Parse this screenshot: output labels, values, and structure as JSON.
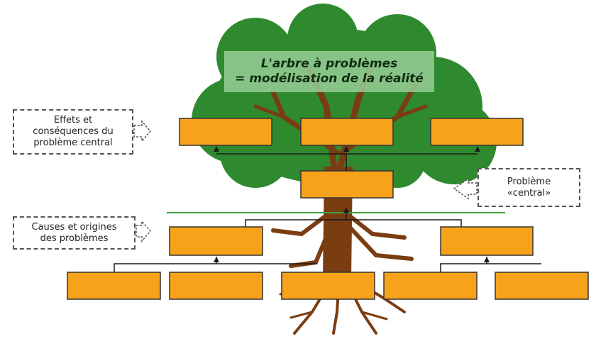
{
  "title": {
    "line1": "L'arbre à problèmes",
    "line2": "= modélisation de la réalité"
  },
  "labels": {
    "effects": [
      "Effets et",
      "conséquences du",
      "problème central"
    ],
    "central": [
      "Problème",
      "«central»"
    ],
    "causes": [
      "Causes et origines",
      "des problèmes"
    ]
  },
  "colors": {
    "canopy": "#2f8a2f",
    "trunk": "#7a3d12",
    "box_fill": "#f7a21b",
    "box_border": "#333333",
    "ground_line": "#3fa33f"
  }
}
